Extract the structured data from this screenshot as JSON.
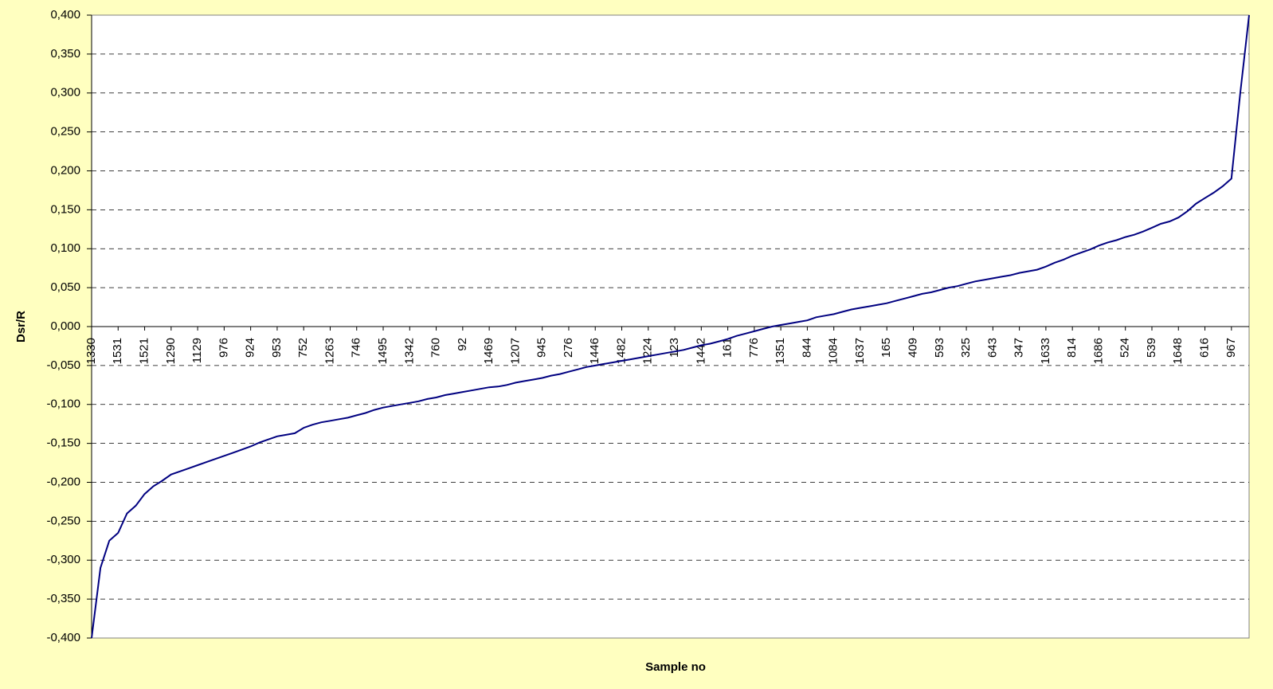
{
  "chart_data": {
    "type": "line",
    "y_label": "Dsr/R",
    "x_label": "Sample no",
    "categories": [
      "1330",
      null,
      null,
      "1531",
      null,
      null,
      "1521",
      null,
      null,
      "1290",
      null,
      null,
      "1129",
      null,
      null,
      "976",
      null,
      null,
      "924",
      null,
      null,
      "953",
      null,
      null,
      "752",
      null,
      null,
      "1263",
      null,
      null,
      "746",
      null,
      null,
      "1495",
      null,
      null,
      "1342",
      null,
      null,
      "760",
      null,
      null,
      "92",
      null,
      null,
      "1469",
      null,
      null,
      "1207",
      null,
      null,
      "945",
      null,
      null,
      "276",
      null,
      null,
      "1446",
      null,
      null,
      "1482",
      null,
      null,
      "1224",
      null,
      null,
      "123",
      null,
      null,
      "1442",
      null,
      null,
      "161",
      null,
      null,
      "776",
      null,
      null,
      "1351",
      null,
      null,
      "844",
      null,
      null,
      "1084",
      null,
      null,
      "1637",
      null,
      null,
      "165",
      null,
      null,
      "409",
      null,
      null,
      "593",
      null,
      null,
      "325",
      null,
      null,
      "643",
      null,
      null,
      "347",
      null,
      null,
      "1633",
      null,
      null,
      "814",
      null,
      null,
      "1686",
      null,
      null,
      "524",
      null,
      null,
      "539",
      null,
      null,
      "1648",
      null,
      null,
      "616",
      null,
      null,
      "967",
      null,
      null
    ],
    "values": [
      -0.4,
      -0.31,
      -0.275,
      -0.265,
      -0.24,
      -0.23,
      -0.215,
      -0.205,
      -0.198,
      -0.19,
      -0.186,
      -0.182,
      -0.178,
      -0.174,
      -0.17,
      -0.166,
      -0.162,
      -0.158,
      -0.154,
      -0.149,
      -0.145,
      -0.141,
      -0.139,
      -0.137,
      -0.13,
      -0.126,
      -0.123,
      -0.121,
      -0.119,
      -0.117,
      -0.114,
      -0.111,
      -0.107,
      -0.104,
      -0.102,
      -0.1,
      -0.098,
      -0.096,
      -0.093,
      -0.091,
      -0.088,
      -0.086,
      -0.084,
      -0.082,
      -0.08,
      -0.078,
      -0.077,
      -0.075,
      -0.072,
      -0.07,
      -0.068,
      -0.066,
      -0.063,
      -0.061,
      -0.058,
      -0.055,
      -0.052,
      -0.05,
      -0.048,
      -0.046,
      -0.044,
      -0.042,
      -0.04,
      -0.038,
      -0.036,
      -0.034,
      -0.032,
      -0.03,
      -0.027,
      -0.024,
      -0.022,
      -0.019,
      -0.016,
      -0.012,
      -0.009,
      -0.006,
      -0.003,
      0,
      0.002,
      0.004,
      0.006,
      0.008,
      0.012,
      0.014,
      0.016,
      0.019,
      0.022,
      0.024,
      0.026,
      0.028,
      0.03,
      0.033,
      0.036,
      0.039,
      0.042,
      0.044,
      0.047,
      0.05,
      0.052,
      0.055,
      0.058,
      0.06,
      0.062,
      0.064,
      0.066,
      0.069,
      0.071,
      0.073,
      0.077,
      0.082,
      0.086,
      0.091,
      0.095,
      0.099,
      0.104,
      0.108,
      0.111,
      0.115,
      0.118,
      0.122,
      0.127,
      0.132,
      0.135,
      0.14,
      0.148,
      0.158,
      0.165,
      0.172,
      0.18,
      0.19,
      0.3,
      0.4
    ],
    "color": "#000080",
    "ylim": [
      -0.4,
      0.4
    ],
    "yticks": [
      {
        "value": -0.4,
        "label": "-0,400"
      },
      {
        "value": -0.35,
        "label": "-0,350"
      },
      {
        "value": -0.3,
        "label": "-0,300"
      },
      {
        "value": -0.25,
        "label": "-0,250"
      },
      {
        "value": -0.2,
        "label": "-0,200"
      },
      {
        "value": -0.15,
        "label": "-0,150"
      },
      {
        "value": -0.1,
        "label": "-0,100"
      },
      {
        "value": -0.05,
        "label": "-0,050"
      },
      {
        "value": 0,
        "label": "0,000"
      },
      {
        "value": 0.05,
        "label": "0,050"
      },
      {
        "value": 0.1,
        "label": "0,100"
      },
      {
        "value": 0.15,
        "label": "0,150"
      },
      {
        "value": 0.2,
        "label": "0,200"
      },
      {
        "value": 0.25,
        "label": "0,250"
      },
      {
        "value": 0.3,
        "label": "0,300"
      },
      {
        "value": 0.35,
        "label": "0,350"
      },
      {
        "value": 0.4,
        "label": "0,400"
      }
    ],
    "grid": true
  }
}
